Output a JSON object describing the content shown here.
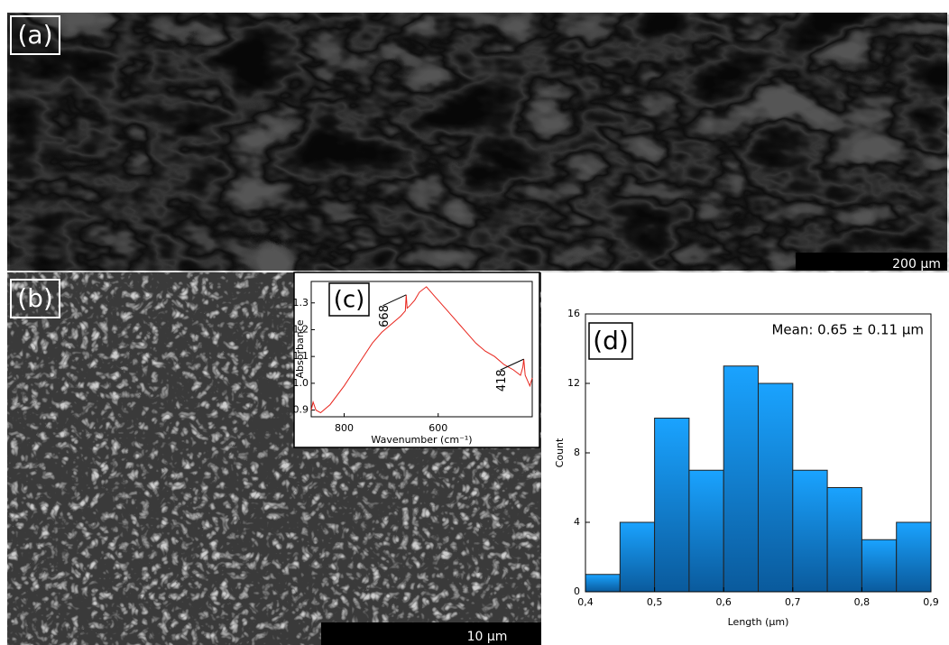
{
  "panels": {
    "a": {
      "label": "(a)",
      "scale": "200 µm"
    },
    "b": {
      "label": "(b)",
      "scale": "10 µm"
    }
  },
  "chart_data": [
    {
      "type": "line",
      "panel_label": "(c)",
      "x_label": "Wavenumber (cm⁻¹)",
      "y_label": "Absorbance",
      "color": "#e8241c",
      "x": [
        870,
        866,
        860,
        850,
        830,
        800,
        770,
        740,
        720,
        700,
        680,
        670,
        668,
        666,
        660,
        650,
        640,
        625,
        610,
        600,
        580,
        560,
        540,
        520,
        500,
        480,
        460,
        440,
        425,
        420,
        418,
        415,
        410,
        405,
        400
      ],
      "values": [
        0.9,
        0.93,
        0.9,
        0.89,
        0.92,
        0.99,
        1.07,
        1.15,
        1.19,
        1.22,
        1.25,
        1.27,
        1.33,
        1.28,
        1.29,
        1.31,
        1.34,
        1.36,
        1.33,
        1.31,
        1.27,
        1.23,
        1.19,
        1.15,
        1.12,
        1.1,
        1.07,
        1.05,
        1.03,
        1.06,
        1.09,
        1.03,
        1.01,
        0.99,
        1.02
      ],
      "xlim": [
        870,
        400
      ],
      "xticks": [
        800,
        600
      ],
      "ylim": [
        0.875,
        1.38
      ],
      "yticks": [
        0.9,
        {
          "value": 1,
          "label": "1.0"
        },
        1.1,
        1.2,
        1.3
      ],
      "annotations": [
        {
          "text": "668",
          "x": 668,
          "y": 1.33
        },
        {
          "text": "418",
          "x": 418,
          "y": 1.09
        }
      ]
    },
    {
      "type": "histogram",
      "panel_label": "(d)",
      "x_label": "Length (µm)",
      "y_label": "Count",
      "annotation": "Mean: 0.65 ± 0.11 µm",
      "bins": [
        0.4,
        0.45,
        0.5,
        0.55,
        0.6,
        0.65,
        0.7,
        0.75,
        0.8,
        0.85,
        0.9
      ],
      "values": [
        1,
        4,
        10,
        7,
        13,
        12,
        7,
        6,
        3,
        4
      ],
      "color": "#1aa3ff",
      "xlim": [
        0.4,
        0.9
      ],
      "xticks": [
        {
          "value": 0.4,
          "label": "0,4"
        },
        {
          "value": 0.5,
          "label": "0,5"
        },
        {
          "value": 0.6,
          "label": "0,6"
        },
        {
          "value": 0.7,
          "label": "0,7"
        },
        {
          "value": 0.8,
          "label": "0,8"
        },
        {
          "value": 0.9,
          "label": "0,9"
        }
      ],
      "ylim": [
        0,
        16
      ],
      "yticks": [
        0,
        4,
        8,
        12,
        16
      ]
    }
  ]
}
